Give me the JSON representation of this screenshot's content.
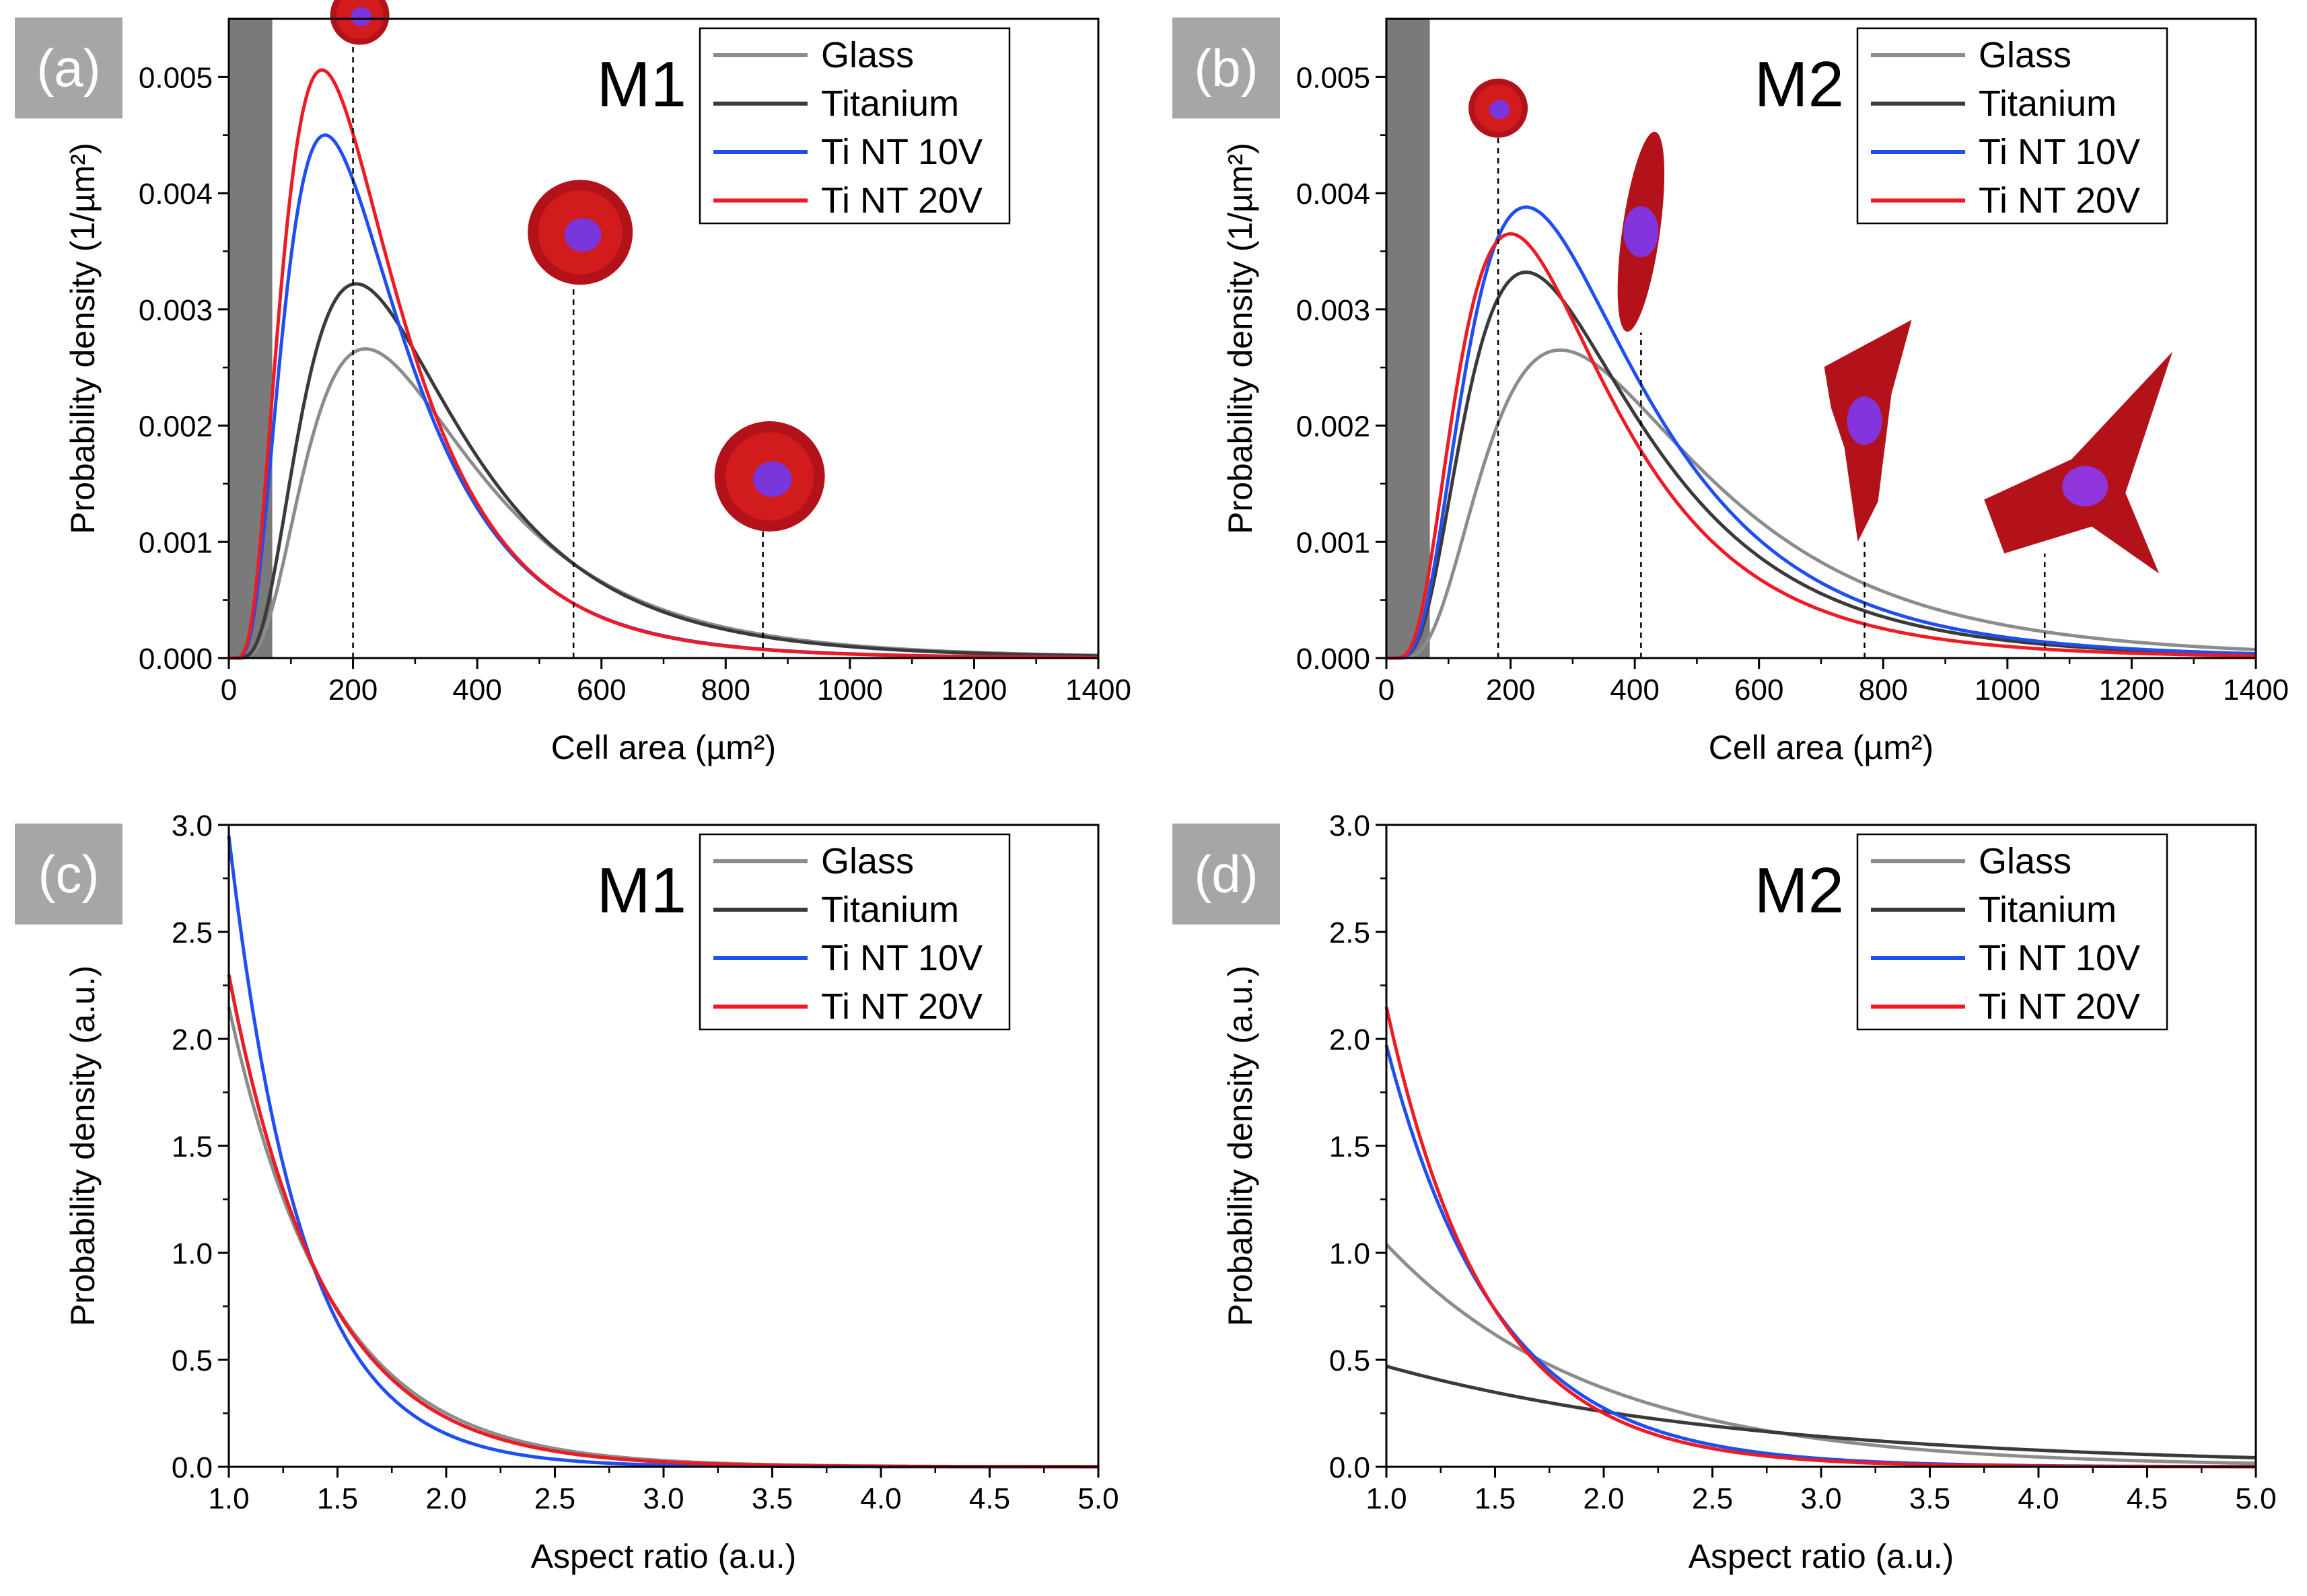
{
  "colors": {
    "Glass": "#8c8c8c",
    "Titanium": "#3a3a3a",
    "Ti NT 10V": "#1f4ff0",
    "Ti NT 20V": "#ee1b24",
    "panel_label_bg": "#a6a6a6",
    "shaded_region": "#7a7a7a"
  },
  "chart_data": [
    {
      "panel": "(a)",
      "title": "M1",
      "type": "line",
      "xlabel": "Cell area (µm²)",
      "ylabel": "Probability density (1/µm²)",
      "xlim": [
        0,
        1400
      ],
      "ylim": [
        0,
        0.0055
      ],
      "xticks": [
        0,
        200,
        400,
        600,
        800,
        1000,
        1200,
        1400
      ],
      "yticks": [
        0.0,
        0.001,
        0.002,
        0.003,
        0.004,
        0.005
      ],
      "ytick_format": "fixed3",
      "xtick_format": "int",
      "shaded_range": [
        0,
        70
      ],
      "legend_position": "top-right",
      "series": [
        {
          "name": "Glass",
          "dist": "lognormal",
          "mode": 220,
          "peak": 0.00266
        },
        {
          "name": "Titanium",
          "dist": "lognormal",
          "mode": 205,
          "peak": 0.00322
        },
        {
          "name": "Ti NT 10V",
          "dist": "lognormal",
          "mode": 155,
          "peak": 0.0045
        },
        {
          "name": "Ti NT 20V",
          "dist": "lognormal",
          "mode": 150,
          "peak": 0.00506
        }
      ],
      "annotation_markers": [
        {
          "x": 200,
          "top": 0.0053,
          "image": "round-cell-icon"
        },
        {
          "x": 555,
          "top": 0.0032,
          "image": "spiky-round-cell-icon"
        },
        {
          "x": 860,
          "top": 0.0011,
          "image": "large-round-cell-icon"
        }
      ]
    },
    {
      "panel": "(b)",
      "title": "M2",
      "type": "line",
      "xlabel": "Cell area (µm²)",
      "ylabel": "Probability density (1/µm²)",
      "xlim": [
        0,
        1400
      ],
      "ylim": [
        0,
        0.0055
      ],
      "xticks": [
        0,
        200,
        400,
        600,
        800,
        1000,
        1200,
        1400
      ],
      "yticks": [
        0.0,
        0.001,
        0.002,
        0.003,
        0.004,
        0.005
      ],
      "ytick_format": "fixed3",
      "xtick_format": "int",
      "shaded_range": [
        0,
        70
      ],
      "legend_position": "top-right",
      "series": [
        {
          "name": "Glass",
          "dist": "lognormal",
          "mode": 280,
          "peak": 0.00265
        },
        {
          "name": "Titanium",
          "dist": "lognormal",
          "mode": 225,
          "peak": 0.00332
        },
        {
          "name": "Ti NT 10V",
          "dist": "lognormal",
          "mode": 225,
          "peak": 0.00388
        },
        {
          "name": "Ti NT 20V",
          "dist": "lognormal",
          "mode": 200,
          "peak": 0.00365
        }
      ],
      "annotation_markers": [
        {
          "x": 180,
          "top": 0.0045,
          "image": "small-cell-icon"
        },
        {
          "x": 410,
          "top": 0.0028,
          "image": "elongated-cell-icon"
        },
        {
          "x": 770,
          "top": 0.001,
          "image": "branched-cell-icon"
        },
        {
          "x": 1060,
          "top": 0.0009,
          "image": "spread-cell-icon"
        }
      ]
    },
    {
      "panel": "(c)",
      "title": "M1",
      "type": "line",
      "xlabel": "Aspect ratio (a.u.)",
      "ylabel": "Probability density (a.u.)",
      "xlim": [
        1.0,
        5.0
      ],
      "ylim": [
        0,
        3.0
      ],
      "xticks": [
        1.0,
        1.5,
        2.0,
        2.5,
        3.0,
        3.5,
        4.0,
        4.5,
        5.0
      ],
      "yticks": [
        0.0,
        0.5,
        1.0,
        1.5,
        2.0,
        2.5,
        3.0
      ],
      "ytick_format": "fixed1",
      "xtick_format": "fixed1",
      "legend_position": "top-right",
      "series": [
        {
          "name": "Glass",
          "dist": "exponential",
          "y0": 2.15,
          "rate": 2.15
        },
        {
          "name": "Titanium",
          "dist": "exponential",
          "y0": 2.3,
          "rate": 2.3
        },
        {
          "name": "Ti NT 10V",
          "dist": "exponential",
          "y0": 2.95,
          "rate": 2.95
        },
        {
          "name": "Ti NT 20V",
          "dist": "exponential",
          "y0": 2.3,
          "rate": 2.3
        }
      ]
    },
    {
      "panel": "(d)",
      "title": "M2",
      "type": "line",
      "xlabel": "Aspect ratio (a.u.)",
      "ylabel": "Probability density (a.u.)",
      "xlim": [
        1.0,
        5.0
      ],
      "ylim": [
        0,
        3.0
      ],
      "xticks": [
        1.0,
        1.5,
        2.0,
        2.5,
        3.0,
        3.5,
        4.0,
        4.5,
        5.0
      ],
      "yticks": [
        0.0,
        0.5,
        1.0,
        1.5,
        2.0,
        2.5,
        3.0
      ],
      "ytick_format": "fixed1",
      "xtick_format": "fixed1",
      "legend_position": "top-right",
      "series": [
        {
          "name": "Glass",
          "dist": "exponential",
          "y0": 1.04,
          "rate": 1.04
        },
        {
          "name": "Titanium",
          "dist": "exponential",
          "y0": 0.47,
          "rate": 0.6
        },
        {
          "name": "Ti NT 10V",
          "dist": "exponential",
          "y0": 1.97,
          "rate": 1.97
        },
        {
          "name": "Ti NT 20V",
          "dist": "exponential",
          "y0": 2.15,
          "rate": 2.15
        }
      ]
    }
  ]
}
